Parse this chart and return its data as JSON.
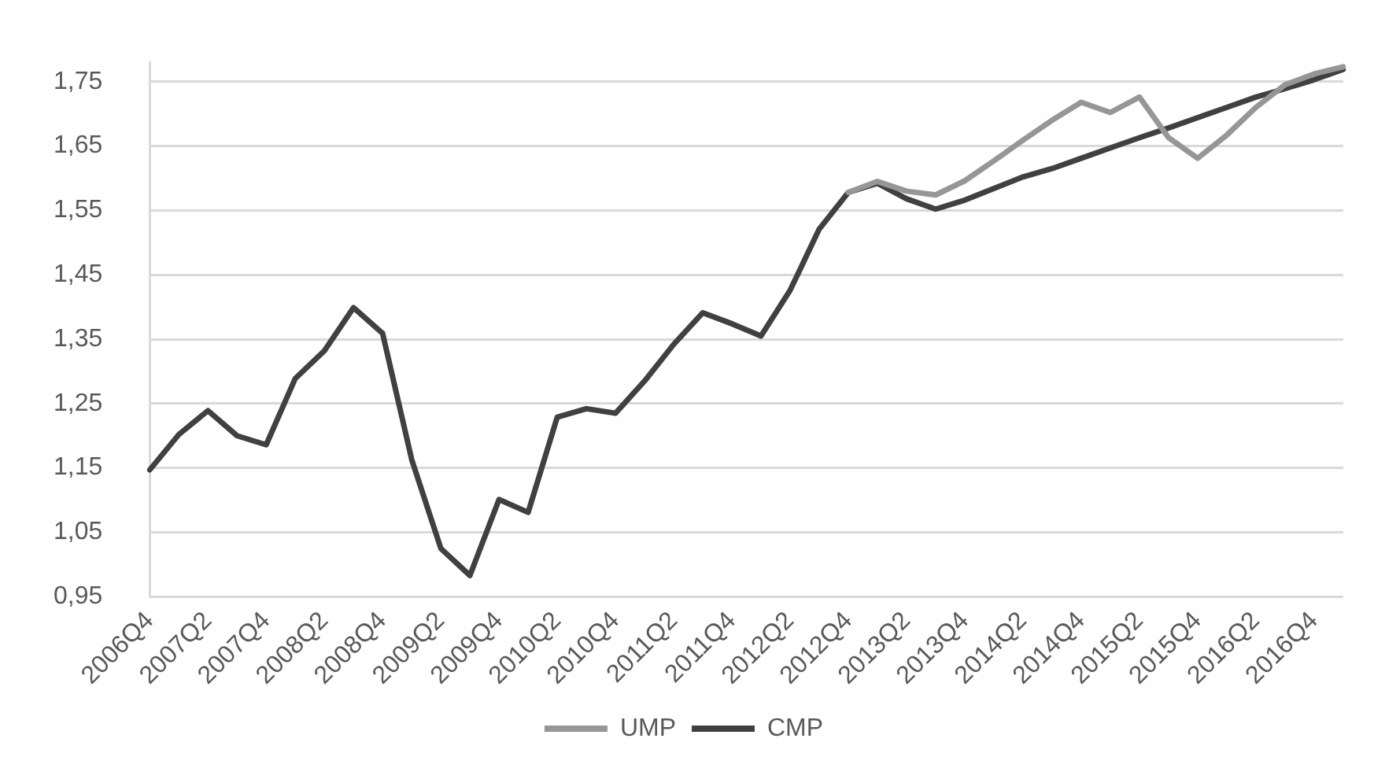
{
  "chart_data": {
    "type": "line",
    "categories": [
      "2006Q4",
      null,
      "2007Q2",
      null,
      "2007Q4",
      null,
      "2008Q2",
      null,
      "2008Q4",
      null,
      "2009Q2",
      null,
      "2009Q4",
      null,
      "2010Q2",
      null,
      "2010Q4",
      null,
      "2011Q2",
      null,
      "2011Q4",
      null,
      "2012Q2",
      null,
      "2012Q4",
      null,
      "2013Q2",
      null,
      "2013Q4",
      null,
      "2014Q2",
      null,
      "2014Q4",
      null,
      "2015Q2",
      null,
      "2015Q4",
      null,
      "2016Q2",
      null,
      "2016Q4",
      null
    ],
    "series": [
      {
        "name": "UMP",
        "color": "#969696",
        "values": [
          null,
          null,
          null,
          null,
          null,
          null,
          null,
          null,
          null,
          null,
          null,
          null,
          null,
          null,
          null,
          null,
          null,
          null,
          null,
          null,
          null,
          null,
          null,
          null,
          1.578,
          1.595,
          1.58,
          1.574,
          1.596,
          1.627,
          1.659,
          1.69,
          1.718,
          1.702,
          1.726,
          1.663,
          1.631,
          1.667,
          1.71,
          1.745,
          1.762,
          1.773
        ]
      },
      {
        "name": "CMP",
        "color": "#404040",
        "values": [
          1.147,
          1.202,
          1.239,
          1.2,
          1.186,
          1.289,
          1.332,
          1.399,
          1.359,
          1.163,
          1.025,
          0.983,
          1.101,
          1.081,
          1.229,
          1.242,
          1.235,
          1.285,
          1.342,
          1.391,
          1.374,
          1.355,
          1.426,
          1.521,
          1.578,
          1.592,
          1.568,
          1.552,
          1.566,
          1.584,
          1.602,
          1.615,
          1.631,
          1.647,
          1.663,
          1.678,
          1.694,
          1.71,
          1.726,
          1.739,
          1.753,
          1.769
        ]
      }
    ],
    "ylim": [
      0.95,
      1.78
    ],
    "yticks": [
      {
        "value": 0.95,
        "label": "0,95"
      },
      {
        "value": 1.05,
        "label": "1,05"
      },
      {
        "value": 1.15,
        "label": "1,15"
      },
      {
        "value": 1.25,
        "label": "1,25"
      },
      {
        "value": 1.35,
        "label": "1,35"
      },
      {
        "value": 1.45,
        "label": "1,45"
      },
      {
        "value": 1.55,
        "label": "1,55"
      },
      {
        "value": 1.65,
        "label": "1,65"
      },
      {
        "value": 1.75,
        "label": "1,75"
      }
    ],
    "grid": "y",
    "legend": "bottom",
    "marker": "none",
    "line_style": "solid"
  }
}
